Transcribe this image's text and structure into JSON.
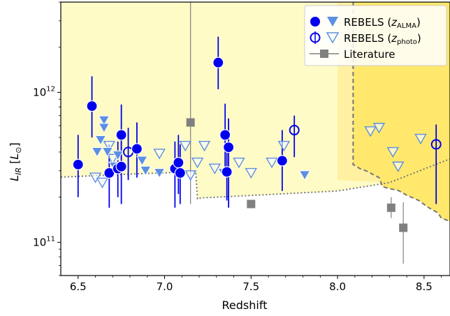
{
  "chart_data": {
    "type": "scatter",
    "xlabel": "Redshift",
    "ylabel_main": "L",
    "ylabel_sub": "IR",
    "ylabel_unit_open": " [",
    "ylabel_unit_main": "L",
    "ylabel_unit_sub": "⊙",
    "ylabel_unit_close": "]",
    "xlim": [
      6.4,
      8.65
    ],
    "ylim": [
      60000000000.0,
      4000000000000.0
    ],
    "yscale": "log",
    "x_ticks": [
      6.5,
      7.0,
      7.5,
      8.0,
      8.5
    ],
    "x_tick_labels": [
      "6.5",
      "7.0",
      "7.5",
      "8.0",
      "8.5"
    ],
    "y_ticks": [
      100000000000.0,
      1000000000000.0
    ],
    "y_tick_labels": [
      {
        "base": "10",
        "exp": "11"
      },
      {
        "base": "10",
        "exp": "12"
      }
    ],
    "legend_position": "top-right",
    "legend": [
      {
        "label_pre": "REBELS (",
        "label_sym": "z",
        "label_sub": "ALMA",
        "label_post": ")"
      },
      {
        "label_pre": "REBELS (",
        "label_sym": "z",
        "label_sub": "photo",
        "label_post": ")"
      },
      {
        "label_pre": "Literature",
        "label_sym": "",
        "label_sub": "",
        "label_post": ""
      }
    ],
    "colors": {
      "alma": "#0000ee",
      "triangle": "#5b8fe3",
      "literature": "#808080",
      "region_light": "#fffbc6",
      "region_mid": "#fff0a2",
      "region_deep": "#ffe86c",
      "region_right": "#ffe699",
      "boundary": "#777777"
    },
    "series": [
      {
        "name": "REBELS (zALMA) circles",
        "marker": "filled-circle",
        "points": [
          {
            "x": 6.5,
            "y": 330000000000.0,
            "lo": 200000000000.0,
            "hi": 520000000000.0
          },
          {
            "x": 6.58,
            "y": 810000000000.0,
            "lo": 500000000000.0,
            "hi": 1280000000000.0
          },
          {
            "x": 6.68,
            "y": 290000000000.0,
            "lo": 170000000000.0,
            "hi": 450000000000.0
          },
          {
            "x": 6.73,
            "y": 310000000000.0,
            "lo": 200000000000.0,
            "hi": 470000000000.0
          },
          {
            "x": 6.75,
            "y": 520000000000.0,
            "lo": 300000000000.0,
            "hi": 830000000000.0
          },
          {
            "x": 6.75,
            "y": 320000000000.0,
            "lo": 180000000000.0,
            "hi": 500000000000.0
          },
          {
            "x": 6.84,
            "y": 420000000000.0,
            "lo": 270000000000.0,
            "hi": 630000000000.0
          },
          {
            "x": 7.06,
            "y": 310000000000.0,
            "lo": 170000000000.0,
            "hi": 470000000000.0
          },
          {
            "x": 7.08,
            "y": 340000000000.0,
            "lo": 210000000000.0,
            "hi": 520000000000.0
          },
          {
            "x": 7.09,
            "y": 290000000000.0,
            "lo": 180000000000.0,
            "hi": 450000000000.0
          },
          {
            "x": 7.31,
            "y": 1580000000000.0,
            "lo": 1050000000000.0,
            "hi": 2350000000000.0
          },
          {
            "x": 7.35,
            "y": 520000000000.0,
            "lo": 320000000000.0,
            "hi": 840000000000.0
          },
          {
            "x": 7.36,
            "y": 295000000000.0,
            "lo": 190000000000.0,
            "hi": 440000000000.0
          },
          {
            "x": 7.37,
            "y": 430000000000.0,
            "lo": 170000000000.0,
            "hi": 670000000000.0
          },
          {
            "x": 7.68,
            "y": 350000000000.0,
            "lo": 220000000000.0,
            "hi": 560000000000.0
          }
        ]
      },
      {
        "name": "REBELS (zALMA) triangles",
        "marker": "filled-triangle-down",
        "points": [
          {
            "x": 6.61,
            "y": 400000000000.0
          },
          {
            "x": 6.63,
            "y": 480000000000.0
          },
          {
            "x": 6.65,
            "y": 650000000000.0
          },
          {
            "x": 6.65,
            "y": 580000000000.0
          },
          {
            "x": 6.67,
            "y": 400000000000.0
          },
          {
            "x": 6.71,
            "y": 320000000000.0
          },
          {
            "x": 6.73,
            "y": 380000000000.0
          },
          {
            "x": 6.87,
            "y": 350000000000.0
          },
          {
            "x": 6.89,
            "y": 300000000000.0
          },
          {
            "x": 6.97,
            "y": 290000000000.0
          },
          {
            "x": 7.34,
            "y": 290000000000.0
          },
          {
            "x": 7.81,
            "y": 280000000000.0
          }
        ]
      },
      {
        "name": "REBELS (zphoto) circles",
        "marker": "open-circle",
        "points": [
          {
            "x": 6.79,
            "y": 400000000000.0,
            "lo": 260000000000.0,
            "hi": 580000000000.0
          },
          {
            "x": 7.75,
            "y": 560000000000.0,
            "lo": 370000000000.0,
            "hi": 700000000000.0
          },
          {
            "x": 8.57,
            "y": 450000000000.0,
            "lo": 180000000000.0,
            "hi": 610000000000.0
          }
        ]
      },
      {
        "name": "REBELS (zphoto) triangles",
        "marker": "open-triangle-down",
        "points": [
          {
            "x": 6.6,
            "y": 270000000000.0
          },
          {
            "x": 6.64,
            "y": 250000000000.0
          },
          {
            "x": 6.68,
            "y": 440000000000.0
          },
          {
            "x": 6.7,
            "y": 360000000000.0
          },
          {
            "x": 6.97,
            "y": 390000000000.0
          },
          {
            "x": 7.12,
            "y": 440000000000.0
          },
          {
            "x": 7.15,
            "y": 280000000000.0
          },
          {
            "x": 7.19,
            "y": 340000000000.0
          },
          {
            "x": 7.23,
            "y": 440000000000.0
          },
          {
            "x": 7.29,
            "y": 310000000000.0
          },
          {
            "x": 7.43,
            "y": 340000000000.0
          },
          {
            "x": 7.5,
            "y": 290000000000.0
          },
          {
            "x": 7.62,
            "y": 340000000000.0
          },
          {
            "x": 7.69,
            "y": 440000000000.0
          },
          {
            "x": 8.19,
            "y": 550000000000.0
          },
          {
            "x": 8.24,
            "y": 580000000000.0
          },
          {
            "x": 8.32,
            "y": 400000000000.0
          },
          {
            "x": 8.35,
            "y": 320000000000.0
          },
          {
            "x": 8.48,
            "y": 490000000000.0
          }
        ]
      },
      {
        "name": "Literature",
        "marker": "square",
        "points": [
          {
            "x": 7.15,
            "y": 630000000000.0,
            "lo": 180000000000.0,
            "hi": 4000000000000.0
          },
          {
            "x": 7.5,
            "y": 180000000000.0
          },
          {
            "x": 8.31,
            "y": 170000000000.0,
            "lo": 145000000000.0,
            "hi": 200000000000.0
          },
          {
            "x": 8.38,
            "y": 125000000000.0,
            "lo": 72000000000.0,
            "hi": 185000000000.0
          }
        ]
      }
    ],
    "regions": {
      "lower_boundary": [
        [
          6.4,
          272000000000.0
        ],
        [
          6.9,
          288000000000.0
        ],
        [
          7.18,
          295000000000.0
        ],
        [
          7.19,
          195000000000.0
        ],
        [
          7.22,
          198000000000.0
        ],
        [
          7.6,
          208000000000.0
        ],
        [
          8.0,
          220000000000.0
        ],
        [
          8.3,
          250000000000.0
        ],
        [
          8.65,
          360000000000.0
        ]
      ],
      "mid_band": [
        [
          8.0,
          4000000000000.0
        ],
        [
          8.0,
          260000000000.0
        ],
        [
          8.3,
          250000000000.0
        ],
        [
          8.65,
          360000000000.0
        ],
        [
          8.65,
          4000000000000.0
        ]
      ],
      "deep_region": [
        [
          8.09,
          4000000000000.0
        ],
        [
          8.09,
          330000000000.0
        ],
        [
          8.13,
          310000000000.0
        ],
        [
          8.18,
          295000000000.0
        ],
        [
          8.2,
          285000000000.0
        ],
        [
          8.24,
          270000000000.0
        ],
        [
          8.26,
          235000000000.0
        ],
        [
          8.3,
          228000000000.0
        ],
        [
          8.35,
          222000000000.0
        ],
        [
          8.4,
          206000000000.0
        ],
        [
          8.47,
          190000000000.0
        ],
        [
          8.52,
          172000000000.0
        ],
        [
          8.58,
          157000000000.0
        ],
        [
          8.6,
          145000000000.0
        ],
        [
          8.65,
          138000000000.0
        ],
        [
          8.65,
          4000000000000.0
        ]
      ]
    }
  }
}
